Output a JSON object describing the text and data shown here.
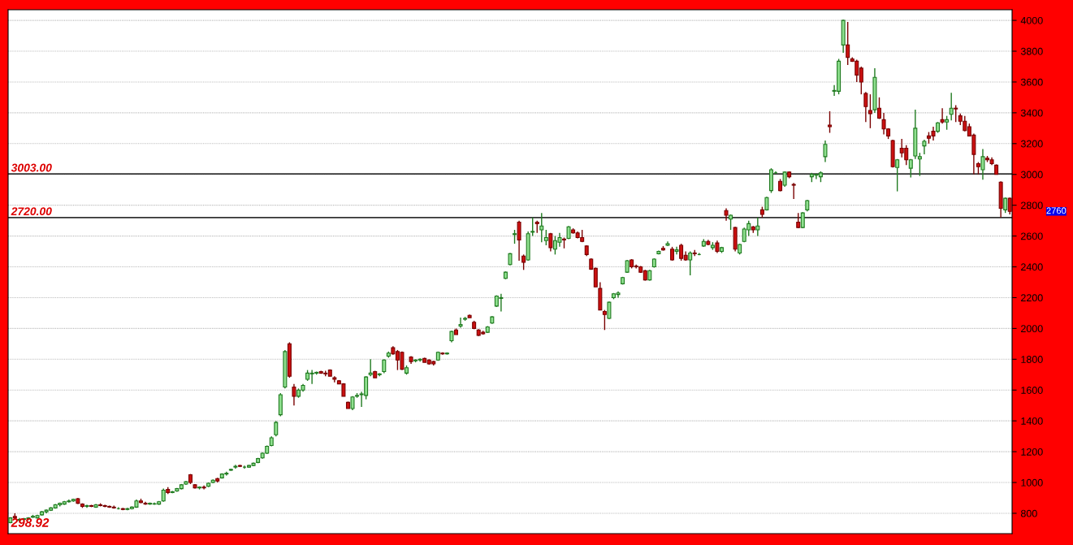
{
  "chart_data": {
    "type": "candlestick",
    "categories": [
      null,
      null,
      null,
      null,
      null,
      null,
      null,
      null,
      null,
      null,
      null,
      null,
      null,
      null,
      null,
      null,
      null,
      null,
      null,
      null,
      null,
      null,
      null,
      null,
      null,
      null,
      null,
      null,
      null,
      null,
      null,
      null,
      null,
      null,
      null,
      null,
      null,
      null,
      null,
      null,
      null,
      null,
      null,
      null,
      null,
      null,
      null,
      null,
      null,
      null,
      null,
      null,
      null,
      null,
      null,
      null,
      null,
      null,
      null,
      null,
      null,
      null,
      null,
      null,
      null,
      null,
      null,
      null,
      null,
      null,
      null,
      null,
      null,
      null,
      null,
      null,
      null,
      null,
      null,
      null,
      null,
      null,
      null,
      null,
      null,
      null,
      null,
      null,
      null,
      null,
      null,
      null,
      null,
      null,
      null,
      null,
      null,
      null,
      null,
      null,
      null,
      null,
      null,
      null,
      null,
      null,
      null,
      null,
      null,
      null,
      null,
      null,
      null,
      null,
      null,
      null,
      null,
      null,
      null,
      null,
      null,
      null,
      null,
      null,
      null,
      null,
      null,
      null,
      null,
      null,
      null,
      null,
      null,
      null,
      null,
      null,
      null,
      null,
      null,
      null,
      null,
      null,
      null,
      null,
      null,
      null,
      null,
      null,
      null,
      null,
      null,
      null,
      null,
      null,
      null,
      null,
      null,
      null,
      null,
      null,
      null,
      null,
      null,
      null,
      null,
      null,
      null,
      null,
      null,
      null,
      null,
      null,
      null,
      null,
      null,
      null,
      null,
      null,
      null,
      null,
      null,
      null,
      null,
      null,
      null,
      null,
      null,
      null,
      null,
      null,
      null,
      null,
      null,
      null,
      null,
      null,
      null,
      null,
      null,
      null,
      null,
      null,
      null,
      null,
      null,
      null,
      null,
      null,
      null,
      null,
      null,
      null,
      null,
      null,
      null,
      null,
      null,
      null,
      null,
      null,
      null,
      null,
      null
    ],
    "ohlc": [
      [
        740,
        775,
        735,
        770
      ],
      [
        780,
        800,
        760,
        770
      ],
      [
        755,
        770,
        745,
        760
      ],
      [
        760,
        770,
        750,
        765
      ],
      [
        765,
        775,
        755,
        770
      ],
      [
        775,
        790,
        770,
        780
      ],
      [
        770,
        790,
        765,
        785
      ],
      [
        790,
        815,
        785,
        810
      ],
      [
        810,
        825,
        800,
        820
      ],
      [
        820,
        840,
        815,
        835
      ],
      [
        835,
        860,
        830,
        855
      ],
      [
        855,
        870,
        845,
        865
      ],
      [
        860,
        880,
        855,
        875
      ],
      [
        875,
        890,
        870,
        880
      ],
      [
        880,
        895,
        875,
        890
      ],
      [
        895,
        900,
        860,
        865
      ],
      [
        860,
        865,
        835,
        845
      ],
      [
        845,
        855,
        835,
        850
      ],
      [
        850,
        855,
        840,
        845
      ],
      [
        840,
        860,
        835,
        855
      ],
      [
        855,
        865,
        845,
        850
      ],
      [
        850,
        855,
        840,
        845
      ],
      [
        845,
        850,
        835,
        840
      ],
      [
        840,
        850,
        830,
        835
      ],
      [
        830,
        840,
        825,
        830
      ],
      [
        830,
        835,
        820,
        825
      ],
      [
        825,
        835,
        820,
        830
      ],
      [
        830,
        845,
        825,
        840
      ],
      [
        840,
        890,
        835,
        880
      ],
      [
        880,
        895,
        865,
        870
      ],
      [
        865,
        875,
        855,
        860
      ],
      [
        860,
        870,
        855,
        865
      ],
      [
        860,
        870,
        855,
        862
      ],
      [
        860,
        880,
        855,
        875
      ],
      [
        880,
        960,
        875,
        950
      ],
      [
        955,
        970,
        925,
        935
      ],
      [
        935,
        945,
        930,
        940
      ],
      [
        945,
        965,
        940,
        960
      ],
      [
        960,
        990,
        955,
        985
      ],
      [
        990,
        1010,
        985,
        1005
      ],
      [
        1050,
        1055,
        990,
        1000
      ],
      [
        985,
        990,
        960,
        965
      ],
      [
        965,
        975,
        955,
        970
      ],
      [
        970,
        980,
        955,
        965
      ],
      [
        975,
        1000,
        970,
        995
      ],
      [
        1000,
        1020,
        995,
        1015
      ],
      [
        1025,
        1030,
        1000,
        1010
      ],
      [
        1030,
        1060,
        1025,
        1055
      ],
      [
        1055,
        1070,
        1045,
        1060
      ],
      [
        1080,
        1090,
        1075,
        1085
      ],
      [
        1100,
        1115,
        1090,
        1105
      ],
      [
        1110,
        1115,
        1100,
        1105
      ],
      [
        1100,
        1110,
        1090,
        1100
      ],
      [
        1100,
        1115,
        1095,
        1110
      ],
      [
        1110,
        1130,
        1105,
        1125
      ],
      [
        1130,
        1160,
        1125,
        1155
      ],
      [
        1160,
        1195,
        1155,
        1190
      ],
      [
        1190,
        1240,
        1185,
        1235
      ],
      [
        1240,
        1300,
        1235,
        1290
      ],
      [
        1310,
        1400,
        1300,
        1390
      ],
      [
        1440,
        1580,
        1430,
        1570
      ],
      [
        1620,
        1860,
        1610,
        1850
      ],
      [
        1900,
        1910,
        1680,
        1690
      ],
      [
        1620,
        1640,
        1500,
        1560
      ],
      [
        1560,
        1610,
        1550,
        1600
      ],
      [
        1600,
        1640,
        1590,
        1630
      ],
      [
        1670,
        1730,
        1660,
        1710
      ],
      [
        1705,
        1730,
        1640,
        1710
      ],
      [
        1710,
        1720,
        1700,
        1715
      ],
      [
        1720,
        1725,
        1705,
        1710
      ],
      [
        1710,
        1725,
        1690,
        1705
      ],
      [
        1730,
        1735,
        1690,
        1690
      ],
      [
        1680,
        1690,
        1650,
        1670
      ],
      [
        1660,
        1665,
        1640,
        1640
      ],
      [
        1640,
        1645,
        1560,
        1560
      ],
      [
        1520,
        1525,
        1480,
        1480
      ],
      [
        1480,
        1560,
        1470,
        1555
      ],
      [
        1560,
        1580,
        1550,
        1565
      ],
      [
        1570,
        1590,
        1490,
        1575
      ],
      [
        1565,
        1690,
        1540,
        1685
      ],
      [
        1700,
        1800,
        1690,
        1710
      ],
      [
        1720,
        1725,
        1680,
        1680
      ],
      [
        1700,
        1710,
        1690,
        1705
      ],
      [
        1720,
        1800,
        1710,
        1795
      ],
      [
        1820,
        1850,
        1810,
        1840
      ],
      [
        1875,
        1885,
        1830,
        1835
      ],
      [
        1850,
        1860,
        1730,
        1795
      ],
      [
        1845,
        1850,
        1730,
        1735
      ],
      [
        1710,
        1760,
        1700,
        1745
      ],
      [
        1815,
        1820,
        1770,
        1785
      ],
      [
        1790,
        1800,
        1780,
        1795
      ],
      [
        1795,
        1805,
        1785,
        1800
      ],
      [
        1805,
        1810,
        1780,
        1780
      ],
      [
        1795,
        1800,
        1765,
        1770
      ],
      [
        1785,
        1790,
        1760,
        1770
      ],
      [
        1795,
        1850,
        1790,
        1845
      ],
      [
        1840,
        1845,
        1830,
        1835
      ],
      [
        1835,
        1845,
        1830,
        1840
      ],
      [
        1920,
        1985,
        1910,
        1980
      ],
      [
        1990,
        2000,
        1960,
        1960
      ],
      [
        2015,
        2070,
        2005,
        2025
      ],
      [
        2060,
        2075,
        2050,
        2065
      ],
      [
        2085,
        2090,
        2070,
        2070
      ],
      [
        2040,
        2050,
        1995,
        2000
      ],
      [
        1990,
        1995,
        1950,
        1955
      ],
      [
        1975,
        1985,
        1960,
        1965
      ],
      [
        1975,
        2015,
        1970,
        2010
      ],
      [
        2035,
        2080,
        2030,
        2075
      ],
      [
        2145,
        2215,
        2140,
        2210
      ],
      [
        2195,
        2225,
        2110,
        2200
      ],
      [
        2325,
        2370,
        2320,
        2365
      ],
      [
        2415,
        2490,
        2410,
        2485
      ],
      [
        2610,
        2640,
        2550,
        2615
      ],
      [
        2690,
        2700,
        2440,
        2575
      ],
      [
        2470,
        2480,
        2380,
        2430
      ],
      [
        2445,
        2630,
        2440,
        2615
      ],
      [
        2625,
        2720,
        2600,
        2630
      ],
      [
        2690,
        2700,
        2620,
        2680
      ],
      [
        2640,
        2750,
        2560,
        2665
      ],
      [
        2570,
        2640,
        2540,
        2590
      ],
      [
        2615,
        2620,
        2500,
        2525
      ],
      [
        2515,
        2600,
        2480,
        2570
      ],
      [
        2560,
        2620,
        2530,
        2590
      ],
      [
        2580,
        2590,
        2520,
        2575
      ],
      [
        2585,
        2665,
        2580,
        2660
      ],
      [
        2640,
        2650,
        2615,
        2620
      ],
      [
        2620,
        2630,
        2585,
        2590
      ],
      [
        2590,
        2640,
        2560,
        2565
      ],
      [
        2535,
        2540,
        2470,
        2480
      ],
      [
        2450,
        2455,
        2380,
        2385
      ],
      [
        2390,
        2395,
        2270,
        2270
      ],
      [
        2260,
        2300,
        2120,
        2120
      ],
      [
        2110,
        2120,
        1990,
        2090
      ],
      [
        2065,
        2175,
        2060,
        2170
      ],
      [
        2200,
        2230,
        2190,
        2225
      ],
      [
        2220,
        2240,
        2200,
        2230
      ],
      [
        2290,
        2335,
        2285,
        2330
      ],
      [
        2365,
        2445,
        2360,
        2440
      ],
      [
        2445,
        2450,
        2390,
        2400
      ],
      [
        2405,
        2415,
        2390,
        2400
      ],
      [
        2400,
        2405,
        2360,
        2365
      ],
      [
        2375,
        2380,
        2310,
        2315
      ],
      [
        2315,
        2380,
        2310,
        2375
      ],
      [
        2400,
        2455,
        2395,
        2450
      ],
      [
        2485,
        2505,
        2480,
        2500
      ],
      [
        2520,
        2535,
        2505,
        2510
      ],
      [
        2540,
        2565,
        2535,
        2550
      ],
      [
        2515,
        2530,
        2440,
        2445
      ],
      [
        2500,
        2530,
        2480,
        2510
      ],
      [
        2540,
        2550,
        2440,
        2455
      ],
      [
        2475,
        2500,
        2440,
        2445
      ],
      [
        2445,
        2500,
        2345,
        2490
      ],
      [
        2490,
        2510,
        2470,
        2485
      ],
      [
        2480,
        2490,
        2475,
        2480
      ],
      [
        2535,
        2580,
        2530,
        2565
      ],
      [
        2565,
        2575,
        2540,
        2545
      ],
      [
        2525,
        2560,
        2510,
        2540
      ],
      [
        2555,
        2570,
        2490,
        2500
      ],
      [
        2500,
        2530,
        2490,
        2525
      ],
      [
        2765,
        2780,
        2700,
        2735
      ],
      [
        2710,
        2740,
        2640,
        2735
      ],
      [
        2655,
        2660,
        2500,
        2515
      ],
      [
        2490,
        2550,
        2480,
        2545
      ],
      [
        2565,
        2655,
        2560,
        2645
      ],
      [
        2640,
        2700,
        2600,
        2680
      ],
      [
        2660,
        2665,
        2620,
        2640
      ],
      [
        2640,
        2720,
        2600,
        2665
      ],
      [
        2770,
        2790,
        2720,
        2740
      ],
      [
        2770,
        2855,
        2765,
        2850
      ],
      [
        2895,
        3040,
        2880,
        3030
      ],
      [
        3010,
        3020,
        3005,
        3010
      ],
      [
        2955,
        2970,
        2890,
        2895
      ],
      [
        2930,
        3020,
        2920,
        3015
      ],
      [
        3015,
        3020,
        2975,
        2985
      ],
      [
        2935,
        2945,
        2840,
        2930
      ],
      [
        2690,
        2750,
        2650,
        2655
      ],
      [
        2655,
        2755,
        2650,
        2750
      ],
      [
        2770,
        2835,
        2760,
        2830
      ],
      [
        2985,
        3010,
        2950,
        3000
      ],
      [
        2995,
        3005,
        2970,
        3000
      ],
      [
        2985,
        3020,
        2950,
        3010
      ],
      [
        3115,
        3220,
        3080,
        3195
      ],
      [
        3320,
        3410,
        3270,
        3310
      ],
      [
        3540,
        3580,
        3510,
        3545
      ],
      [
        3540,
        3750,
        3520,
        3735
      ],
      [
        3840,
        4005,
        3790,
        4000
      ],
      [
        3840,
        3990,
        3710,
        3760
      ],
      [
        3750,
        3760,
        3730,
        3735
      ],
      [
        3735,
        3745,
        3600,
        3645
      ],
      [
        3690,
        3700,
        3520,
        3600
      ],
      [
        3525,
        3535,
        3340,
        3440
      ],
      [
        3415,
        3520,
        3300,
        3395
      ],
      [
        3420,
        3690,
        3400,
        3630
      ],
      [
        3430,
        3500,
        3360,
        3365
      ],
      [
        3355,
        3400,
        3260,
        3295
      ],
      [
        3295,
        3300,
        3230,
        3250
      ],
      [
        3220,
        3225,
        3045,
        3050
      ],
      [
        3045,
        3100,
        2890,
        3095
      ],
      [
        3170,
        3230,
        3110,
        3140
      ],
      [
        3170,
        3190,
        3060,
        3095
      ],
      [
        3040,
        3100,
        2980,
        3095
      ],
      [
        3120,
        3420,
        3100,
        3300
      ],
      [
        3100,
        3140,
        2990,
        3115
      ],
      [
        3185,
        3225,
        3130,
        3215
      ],
      [
        3250,
        3275,
        3200,
        3235
      ],
      [
        3280,
        3310,
        3220,
        3250
      ],
      [
        3280,
        3340,
        3270,
        3335
      ],
      [
        3355,
        3430,
        3330,
        3340
      ],
      [
        3340,
        3380,
        3290,
        3355
      ],
      [
        3390,
        3530,
        3350,
        3430
      ],
      [
        3430,
        3450,
        3340,
        3425
      ],
      [
        3380,
        3395,
        3320,
        3345
      ],
      [
        3345,
        3380,
        3280,
        3285
      ],
      [
        3310,
        3330,
        3250,
        3250
      ],
      [
        3255,
        3265,
        3000,
        3130
      ],
      [
        3070,
        3080,
        3000,
        3050
      ],
      [
        3030,
        3165,
        2965,
        3115
      ],
      [
        3105,
        3120,
        3080,
        3095
      ],
      [
        3095,
        3110,
        3060,
        3070
      ],
      [
        3060,
        3065,
        3000,
        3000
      ],
      [
        2950,
        2955,
        2720,
        2780
      ],
      [
        2770,
        2850,
        2750,
        2845
      ],
      [
        2845,
        2850,
        2740,
        2760
      ]
    ],
    "ylim": [
      668,
      4069
    ],
    "yticks": [
      800,
      1000,
      1200,
      1400,
      1600,
      1800,
      2000,
      2200,
      2400,
      2600,
      2800,
      3000,
      3200,
      3400,
      3600,
      3800,
      4000
    ],
    "tick_labels": "y",
    "grid": "y",
    "ref_lines": [
      {
        "axis": "y",
        "value": 3003,
        "label": "3003.00",
        "color": "#333333"
      },
      {
        "axis": "y",
        "value": 2720,
        "label": "2720.00",
        "color": "#333333"
      }
    ],
    "annotations": [
      "2760",
      "298.92"
    ]
  }
}
